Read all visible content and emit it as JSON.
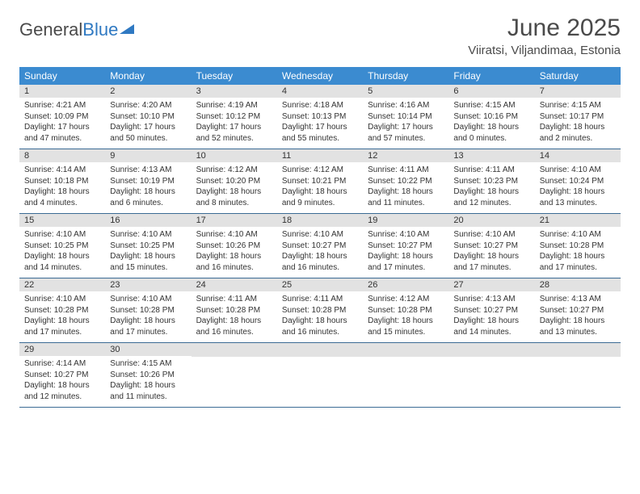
{
  "logo": {
    "text_dark": "General",
    "text_blue": "Blue"
  },
  "title": "June 2025",
  "location": "Viiratsi, Viljandimaa, Estonia",
  "colors": {
    "header_bg": "#3b8bd0",
    "header_text": "#ffffff",
    "daynum_bg": "#e2e2e2",
    "week_border": "#3b6b94",
    "logo_blue": "#2f79c2",
    "title_color": "#4a4a4a"
  },
  "weekdays": [
    "Sunday",
    "Monday",
    "Tuesday",
    "Wednesday",
    "Thursday",
    "Friday",
    "Saturday"
  ],
  "weeks": [
    [
      {
        "n": "1",
        "sr": "4:21 AM",
        "ss": "10:09 PM",
        "dl": "17 hours and 47 minutes."
      },
      {
        "n": "2",
        "sr": "4:20 AM",
        "ss": "10:10 PM",
        "dl": "17 hours and 50 minutes."
      },
      {
        "n": "3",
        "sr": "4:19 AM",
        "ss": "10:12 PM",
        "dl": "17 hours and 52 minutes."
      },
      {
        "n": "4",
        "sr": "4:18 AM",
        "ss": "10:13 PM",
        "dl": "17 hours and 55 minutes."
      },
      {
        "n": "5",
        "sr": "4:16 AM",
        "ss": "10:14 PM",
        "dl": "17 hours and 57 minutes."
      },
      {
        "n": "6",
        "sr": "4:15 AM",
        "ss": "10:16 PM",
        "dl": "18 hours and 0 minutes."
      },
      {
        "n": "7",
        "sr": "4:15 AM",
        "ss": "10:17 PM",
        "dl": "18 hours and 2 minutes."
      }
    ],
    [
      {
        "n": "8",
        "sr": "4:14 AM",
        "ss": "10:18 PM",
        "dl": "18 hours and 4 minutes."
      },
      {
        "n": "9",
        "sr": "4:13 AM",
        "ss": "10:19 PM",
        "dl": "18 hours and 6 minutes."
      },
      {
        "n": "10",
        "sr": "4:12 AM",
        "ss": "10:20 PM",
        "dl": "18 hours and 8 minutes."
      },
      {
        "n": "11",
        "sr": "4:12 AM",
        "ss": "10:21 PM",
        "dl": "18 hours and 9 minutes."
      },
      {
        "n": "12",
        "sr": "4:11 AM",
        "ss": "10:22 PM",
        "dl": "18 hours and 11 minutes."
      },
      {
        "n": "13",
        "sr": "4:11 AM",
        "ss": "10:23 PM",
        "dl": "18 hours and 12 minutes."
      },
      {
        "n": "14",
        "sr": "4:10 AM",
        "ss": "10:24 PM",
        "dl": "18 hours and 13 minutes."
      }
    ],
    [
      {
        "n": "15",
        "sr": "4:10 AM",
        "ss": "10:25 PM",
        "dl": "18 hours and 14 minutes."
      },
      {
        "n": "16",
        "sr": "4:10 AM",
        "ss": "10:25 PM",
        "dl": "18 hours and 15 minutes."
      },
      {
        "n": "17",
        "sr": "4:10 AM",
        "ss": "10:26 PM",
        "dl": "18 hours and 16 minutes."
      },
      {
        "n": "18",
        "sr": "4:10 AM",
        "ss": "10:27 PM",
        "dl": "18 hours and 16 minutes."
      },
      {
        "n": "19",
        "sr": "4:10 AM",
        "ss": "10:27 PM",
        "dl": "18 hours and 17 minutes."
      },
      {
        "n": "20",
        "sr": "4:10 AM",
        "ss": "10:27 PM",
        "dl": "18 hours and 17 minutes."
      },
      {
        "n": "21",
        "sr": "4:10 AM",
        "ss": "10:28 PM",
        "dl": "18 hours and 17 minutes."
      }
    ],
    [
      {
        "n": "22",
        "sr": "4:10 AM",
        "ss": "10:28 PM",
        "dl": "18 hours and 17 minutes."
      },
      {
        "n": "23",
        "sr": "4:10 AM",
        "ss": "10:28 PM",
        "dl": "18 hours and 17 minutes."
      },
      {
        "n": "24",
        "sr": "4:11 AM",
        "ss": "10:28 PM",
        "dl": "18 hours and 16 minutes."
      },
      {
        "n": "25",
        "sr": "4:11 AM",
        "ss": "10:28 PM",
        "dl": "18 hours and 16 minutes."
      },
      {
        "n": "26",
        "sr": "4:12 AM",
        "ss": "10:28 PM",
        "dl": "18 hours and 15 minutes."
      },
      {
        "n": "27",
        "sr": "4:13 AM",
        "ss": "10:27 PM",
        "dl": "18 hours and 14 minutes."
      },
      {
        "n": "28",
        "sr": "4:13 AM",
        "ss": "10:27 PM",
        "dl": "18 hours and 13 minutes."
      }
    ],
    [
      {
        "n": "29",
        "sr": "4:14 AM",
        "ss": "10:27 PM",
        "dl": "18 hours and 12 minutes."
      },
      {
        "n": "30",
        "sr": "4:15 AM",
        "ss": "10:26 PM",
        "dl": "18 hours and 11 minutes."
      },
      null,
      null,
      null,
      null,
      null
    ]
  ],
  "labels": {
    "sunrise": "Sunrise:",
    "sunset": "Sunset:",
    "daylight": "Daylight:"
  }
}
